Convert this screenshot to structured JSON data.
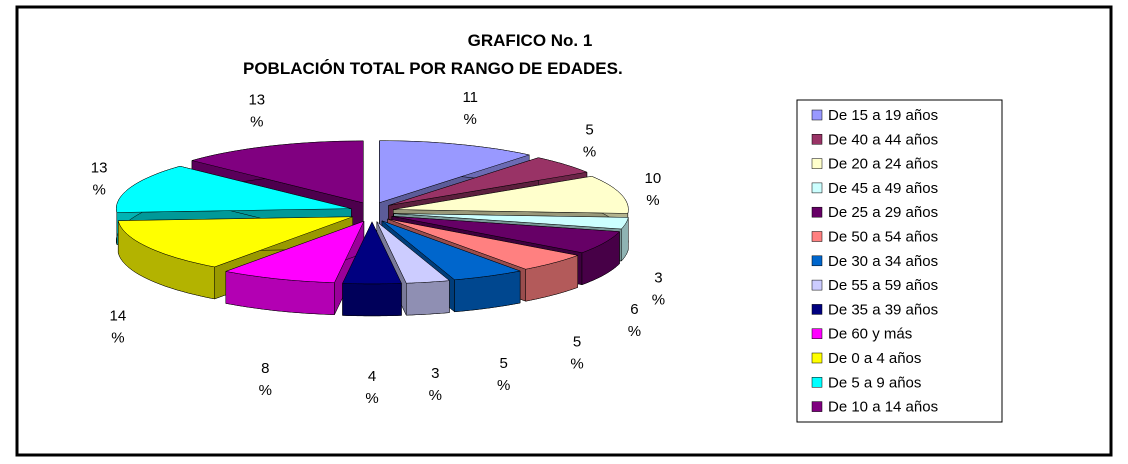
{
  "chart_data": {
    "type": "pie",
    "title": "GRAFICO No. 1",
    "subtitle": "POBLACIÓN TOTAL POR RANGO DE EDADES.",
    "categories": [
      "De 15 a 19 años",
      "De 40 a 44 años",
      "De 20 a 24 años",
      "De 45 a 49 años",
      "De 25 a 29 años",
      "De 50 a 54 años",
      "De 30 a 34 años",
      "De 55 a 59 años",
      "De 35 a 39 años",
      "De 60 y más",
      "De 0 a 4 años",
      "De 5 a 9 años",
      "De 10 a 14 años"
    ],
    "values": [
      11,
      5,
      10,
      3,
      6,
      5,
      5,
      3,
      4,
      8,
      14,
      13,
      13
    ],
    "value_labels": [
      "11 %",
      "5 %",
      "10 %",
      "3 %",
      "6 %",
      "5 %",
      "5 %",
      "3 %",
      "4 %",
      "8 %",
      "14 %",
      "13 %",
      "13 %"
    ],
    "colors": [
      "#9999ff",
      "#993366",
      "#ffffcc",
      "#ccffff",
      "#660066",
      "#ff8080",
      "#0066cc",
      "#ccccff",
      "#000080",
      "#ff00ff",
      "#ffff00",
      "#00ffff",
      "#800080"
    ],
    "legend": "right"
  }
}
